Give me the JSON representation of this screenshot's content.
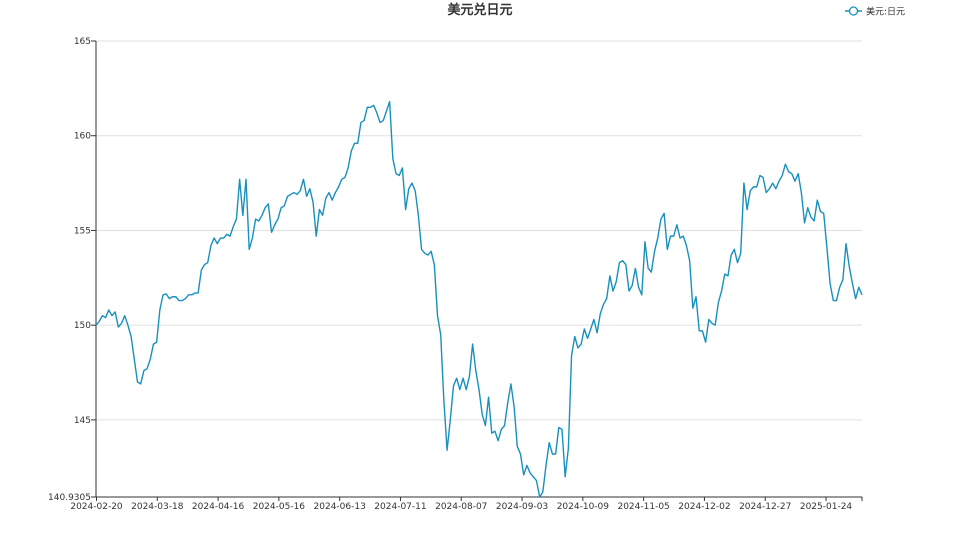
{
  "chart_data": {
    "type": "line",
    "title": "美元兑日元",
    "xlabel": "",
    "ylabel": "",
    "ylim": [
      140.9305,
      165
    ],
    "y_ticks": [
      "165",
      "160",
      "155",
      "150",
      "145",
      "140.9305"
    ],
    "x_ticks": [
      "2024-02-20",
      "2024-03-18",
      "2024-04-16",
      "2024-05-16",
      "2024-06-13",
      "2024-07-11",
      "2024-08-07",
      "2024-09-03",
      "2024-10-09",
      "2024-11-05",
      "2024-12-02",
      "2024-12-27",
      "2025-01-24"
    ],
    "grid": true,
    "legend_position": "top-right",
    "colors": {
      "line": "#1890bd",
      "grid": "#e0e0e0",
      "axis": "#333333"
    },
    "series": [
      {
        "name": "美元:日元",
        "values": [
          150.0,
          150.2,
          150.5,
          150.4,
          150.8,
          150.5,
          150.7,
          149.9,
          150.1,
          150.5,
          150.0,
          149.4,
          148.2,
          147.0,
          146.9,
          147.6,
          147.7,
          148.2,
          149.0,
          149.1,
          150.8,
          151.6,
          151.65,
          151.4,
          151.5,
          151.5,
          151.3,
          151.3,
          151.4,
          151.6,
          151.6,
          151.7,
          151.7,
          152.9,
          153.2,
          153.3,
          154.2,
          154.6,
          154.3,
          154.6,
          154.6,
          154.8,
          154.7,
          155.2,
          155.6,
          157.7,
          155.8,
          157.7,
          154.0,
          154.6,
          155.6,
          155.5,
          155.8,
          156.2,
          156.4,
          154.9,
          155.3,
          155.6,
          156.2,
          156.3,
          156.8,
          156.9,
          157.0,
          156.9,
          157.1,
          157.7,
          156.8,
          157.2,
          156.5,
          154.7,
          156.1,
          155.8,
          156.7,
          157.0,
          156.6,
          157.0,
          157.3,
          157.7,
          157.8,
          158.3,
          159.2,
          159.6,
          159.6,
          160.7,
          160.8,
          161.5,
          161.5,
          161.6,
          161.2,
          160.7,
          160.8,
          161.3,
          161.8,
          158.8,
          158.0,
          157.9,
          158.3,
          156.1,
          157.2,
          157.5,
          157.1,
          155.8,
          154.0,
          153.8,
          153.7,
          153.9,
          153.2,
          150.5,
          149.5,
          146.0,
          143.4,
          145.0,
          146.8,
          147.2,
          146.6,
          147.2,
          146.6,
          147.3,
          149.0,
          147.6,
          146.6,
          145.3,
          144.7,
          146.2,
          144.3,
          144.4,
          143.9,
          144.5,
          144.7,
          145.9,
          146.9,
          145.7,
          143.6,
          143.2,
          142.1,
          142.6,
          142.2,
          142.0,
          141.8,
          140.93,
          141.2,
          142.6,
          143.8,
          143.2,
          143.2,
          144.6,
          144.5,
          142.0,
          143.5,
          148.4,
          149.4,
          148.8,
          149.0,
          149.8,
          149.3,
          149.8,
          150.3,
          149.6,
          150.6,
          151.1,
          151.4,
          152.6,
          151.8,
          152.3,
          153.3,
          153.4,
          153.2,
          151.8,
          152.1,
          153.0,
          152.0,
          151.6,
          154.4,
          153.0,
          152.8,
          153.9,
          154.6,
          155.6,
          155.9,
          154.0,
          154.7,
          154.7,
          155.3,
          154.6,
          154.7,
          154.2,
          153.4,
          150.9,
          151.5,
          149.7,
          149.7,
          149.1,
          150.3,
          150.1,
          150.0,
          151.2,
          151.8,
          152.7,
          152.6,
          153.7,
          154.0,
          153.3,
          153.8,
          157.5,
          156.1,
          157.1,
          157.3,
          157.3,
          157.9,
          157.8,
          157.0,
          157.2,
          157.5,
          157.2,
          157.6,
          157.9,
          158.5,
          158.1,
          158.0,
          157.6,
          158.0,
          157.0,
          155.4,
          156.2,
          155.7,
          155.5,
          156.6,
          156.0,
          155.9,
          154.1,
          152.2,
          151.3,
          151.3,
          152.0,
          152.4,
          154.3,
          153.1,
          152.2,
          151.4,
          152.0,
          151.6
        ]
      }
    ]
  }
}
